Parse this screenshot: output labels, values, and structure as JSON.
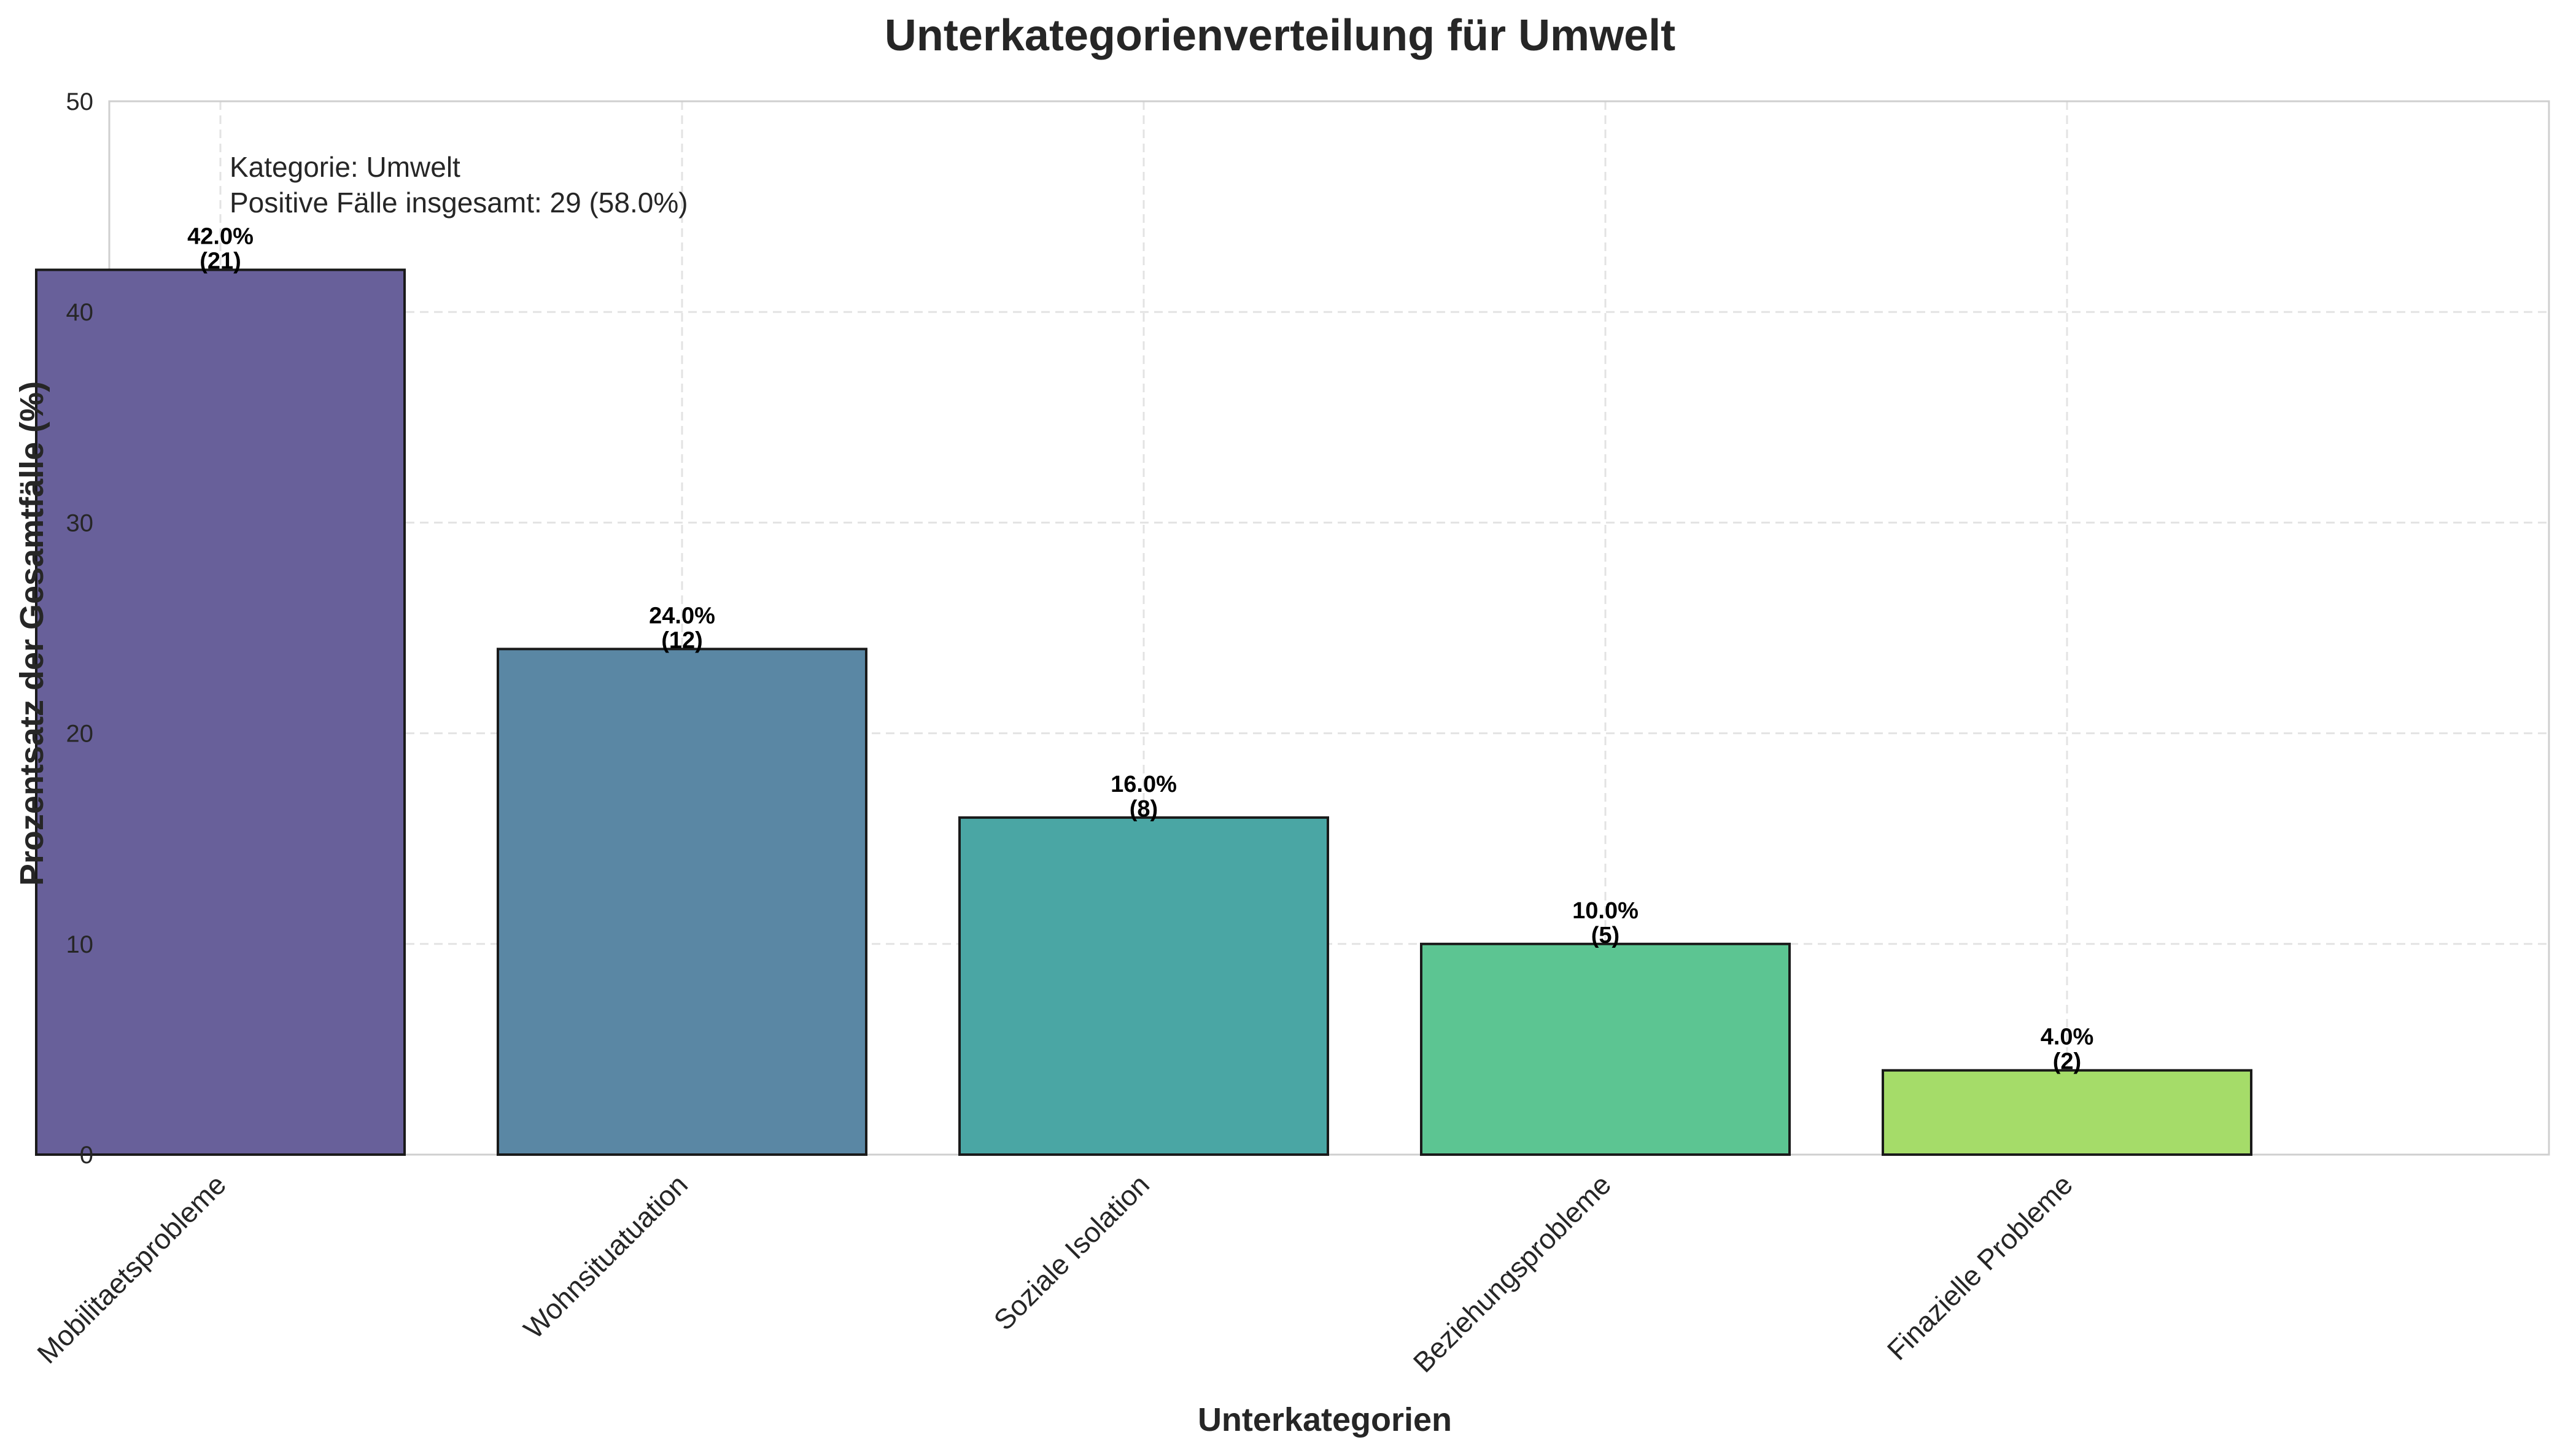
{
  "chart_data": {
    "type": "bar",
    "title": "Unterkategorienverteilung für Umwelt",
    "xlabel": "Unterkategorien",
    "ylabel": "Prozentsatz der Gesamtfälle (%)",
    "ylim": [
      0,
      50
    ],
    "yticks": [
      "0",
      "10",
      "20",
      "30",
      "40",
      "50"
    ],
    "grid": true,
    "categories": [
      "Mobilitaetsprobleme",
      "Wohnsituatuation",
      "Soziale Isolation",
      "Beziehungsprobleme",
      "Finazielle Probleme"
    ],
    "values": [
      42.0,
      24.0,
      16.0,
      10.0,
      4.0
    ],
    "counts": [
      21,
      12,
      8,
      5,
      2
    ],
    "value_labels": [
      "42.0%",
      "24.0%",
      "16.0%",
      "10.0%",
      "4.0%"
    ],
    "count_labels": [
      "(21)",
      "(12)",
      "(8)",
      "(5)",
      "(2)"
    ],
    "colors": [
      "#68609a",
      "#5a87a4",
      "#4aa6a4",
      "#5cc592",
      "#a5dc69"
    ],
    "annotation": {
      "line1": "Kategorie: Umwelt",
      "line2": "Positive Fälle insgesamt: 29 (58.0%)"
    }
  }
}
